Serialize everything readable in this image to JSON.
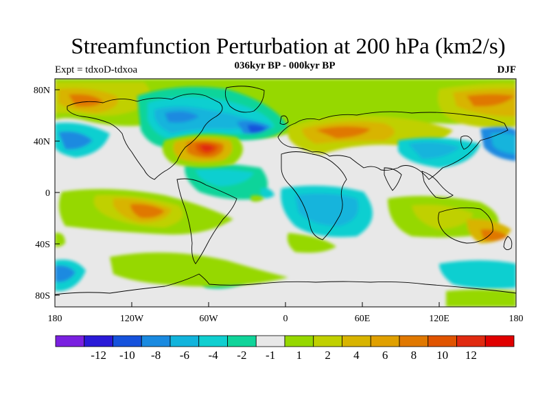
{
  "title": "Streamfunction Perturbation at 200 hPa (km2/s)",
  "subtitle": "036kyr BP - 000kyr BP",
  "left_string": "Expt = tdxoD-tdxoa",
  "right_string": "DJF",
  "x_ticks": [
    "180",
    "120W",
    "60W",
    "0",
    "60E",
    "120E",
    "180"
  ],
  "y_ticks": [
    "80N",
    "40N",
    "0",
    "40S",
    "80S"
  ],
  "colorbar": {
    "colors": [
      "#7a20e0",
      "#2a1ad8",
      "#1652dc",
      "#1a8ae0",
      "#12b4dc",
      "#10cfd0",
      "#10d49a",
      "#e8e8e8",
      "#96d800",
      "#c0d000",
      "#d8b400",
      "#e0a000",
      "#e07800",
      "#e05400",
      "#e02a10",
      "#e00000"
    ],
    "labels": [
      "-12",
      "-10",
      "-8",
      "-6",
      "-4",
      "-2",
      "-1",
      "1",
      "2",
      "4",
      "6",
      "8",
      "10",
      "12"
    ]
  }
}
